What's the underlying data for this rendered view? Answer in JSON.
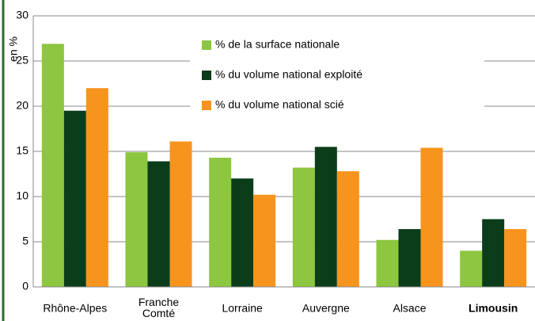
{
  "chart_data": {
    "type": "bar",
    "y_label": "en %",
    "categories": [
      "Rhône-Alpes",
      "Franche Comté",
      "Lorraine",
      "Auvergne",
      "Alsace",
      "Limousin"
    ],
    "bold_category_index": 5,
    "series": [
      {
        "name": "% de la surface nationale",
        "color": "#8dc63f",
        "values": [
          26.9,
          14.9,
          14.3,
          13.2,
          5.2,
          4.0
        ]
      },
      {
        "name": "% du volume national exploité",
        "color": "#0b3d1b",
        "values": [
          19.5,
          13.9,
          12.0,
          15.5,
          6.4,
          7.5
        ]
      },
      {
        "name": "% du volume national scié",
        "color": "#f7941d",
        "values": [
          22.0,
          16.1,
          10.2,
          12.8,
          15.4,
          6.4
        ]
      }
    ],
    "ylim": [
      0,
      30
    ],
    "yticks": [
      0,
      5,
      10,
      15,
      20,
      25,
      30
    ],
    "grid": true
  }
}
